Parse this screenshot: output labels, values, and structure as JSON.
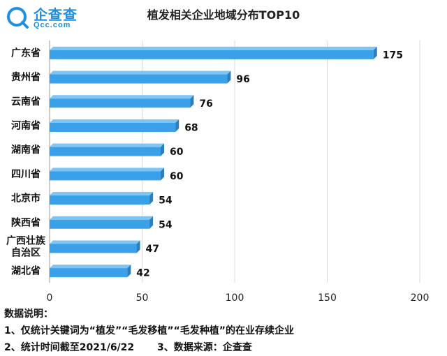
{
  "logo": {
    "name": "企查查",
    "domain": "Qcc.com"
  },
  "chart_data": {
    "type": "bar",
    "orientation": "horizontal",
    "title": "植发相关企业地域分布TOP10",
    "categories": [
      "广东省",
      "贵州省",
      "云南省",
      "河南省",
      "湖南省",
      "四川省",
      "北京市",
      "陕西省",
      "广西壮族自治区",
      "湖北省"
    ],
    "category_display": [
      [
        "广东省"
      ],
      [
        "贵州省"
      ],
      [
        "云南省"
      ],
      [
        "河南省"
      ],
      [
        "湖南省"
      ],
      [
        "四川省"
      ],
      [
        "北京市"
      ],
      [
        "陕西省"
      ],
      [
        "广西壮族",
        "自治区"
      ],
      [
        "湖北省"
      ]
    ],
    "values": [
      175,
      96,
      76,
      68,
      60,
      60,
      54,
      54,
      47,
      42
    ],
    "value_labels": [
      "175",
      "96",
      "76",
      "68",
      "60",
      "60",
      "54",
      "54",
      "47",
      "42"
    ],
    "xlim": [
      0,
      200
    ],
    "xticks": [
      0,
      50,
      100,
      150,
      200
    ],
    "xtick_labels": [
      "0",
      "50",
      "100",
      "150",
      "200"
    ],
    "grid": true,
    "bar_color": "#3aa0e8"
  },
  "notes": {
    "heading": "数据说明：",
    "keywords": "1、仅统计关键词为“植发”“毛发移植”“毛发种植”的在业存续企业",
    "time": "2、统计时间截至2021/6/22",
    "source": "3、数据来源：企查查"
  }
}
